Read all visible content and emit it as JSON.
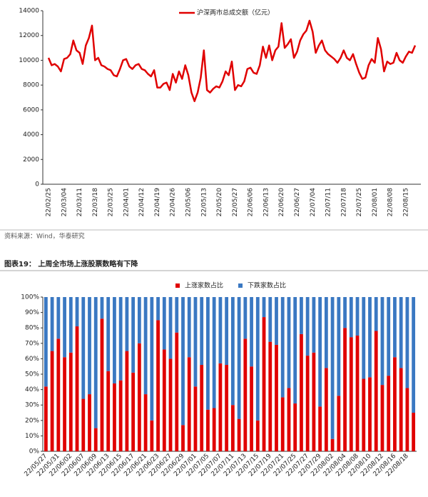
{
  "chart_data": [
    {
      "type": "line",
      "series": [
        {
          "name": "沪深两市总成交额（亿元）",
          "color": "#e00000",
          "values": [
            10200,
            9600,
            9700,
            9500,
            9100,
            10100,
            10200,
            10500,
            11600,
            10800,
            10600,
            9700,
            11200,
            11800,
            12800,
            10000,
            10200,
            9600,
            9500,
            9300,
            9200,
            8800,
            8700,
            9300,
            10000,
            10100,
            9500,
            9300,
            9600,
            9700,
            9300,
            9200,
            8900,
            8700,
            9200,
            7800,
            7800,
            8100,
            8200,
            7600,
            8900,
            8200,
            9100,
            8500,
            9600,
            8800,
            7400,
            6700,
            7400,
            8600,
            10800,
            7600,
            7400,
            7700,
            7900,
            7800,
            8300,
            9100,
            8800,
            9900,
            7600,
            8000,
            7900,
            8300,
            9300,
            9400,
            9000,
            8900,
            9600,
            11100,
            10200,
            11200,
            10000,
            10800,
            11100,
            13000,
            11000,
            11300,
            11700,
            10200,
            10700,
            11600,
            12100,
            12400,
            13200,
            12300,
            10600,
            11200,
            11600,
            10800,
            10500,
            10300,
            10100,
            9800,
            10200,
            10800,
            10200,
            10000,
            10500,
            9700,
            9000,
            8500,
            8600,
            9600,
            10100,
            9800,
            11800,
            10900,
            9100,
            9900,
            9700,
            9800,
            10600,
            10000,
            9800,
            10300,
            10700,
            10600,
            11200
          ]
        }
      ],
      "categories": [
        "22/02/25",
        null,
        null,
        null,
        null,
        "22/03/04",
        null,
        null,
        null,
        null,
        "22/03/11",
        null,
        null,
        null,
        null,
        "22/03/18",
        null,
        null,
        null,
        null,
        "22/03/25",
        null,
        null,
        null,
        null,
        "22/04/01",
        null,
        null,
        null,
        null,
        "22/04/12",
        null,
        null,
        null,
        null,
        "22/04/19",
        null,
        null,
        null,
        null,
        "22/04/26",
        null,
        null,
        null,
        null,
        "22/05/06",
        null,
        null,
        null,
        null,
        "22/05/13",
        null,
        null,
        null,
        null,
        "22/05/20",
        null,
        null,
        null,
        null,
        "22/05/27",
        null,
        null,
        null,
        null,
        "22/06/06",
        null,
        null,
        null,
        null,
        "22/06/13",
        null,
        null,
        null,
        null,
        "22/06/20",
        null,
        null,
        null,
        null,
        "22/06/27",
        null,
        null,
        null,
        null,
        "22/07/04",
        null,
        null,
        null,
        null,
        "22/07/11",
        null,
        null,
        null,
        null,
        "22/07/18",
        null,
        null,
        null,
        null,
        "22/07/25",
        null,
        null,
        null,
        null,
        "22/08/01",
        null,
        null,
        null,
        null,
        "22/08/08",
        null,
        null,
        null,
        null,
        "22/08/15",
        null,
        null,
        null
      ],
      "ylim": [
        0,
        14000
      ],
      "yticks": [
        0,
        2000,
        4000,
        6000,
        8000,
        10000,
        12000,
        14000
      ],
      "legend": "top"
    },
    {
      "type": "stacked_bar",
      "series": [
        {
          "name": "上涨家数占比",
          "color": "#e00000",
          "values": [
            42,
            65,
            73,
            61,
            64,
            81,
            34,
            37,
            15,
            86,
            52,
            44,
            46,
            65,
            51,
            70,
            37,
            20,
            85,
            66,
            60,
            77,
            17,
            61,
            42,
            56,
            27,
            28,
            57,
            56,
            30,
            21,
            73,
            55,
            20,
            87,
            71,
            69,
            35,
            41,
            31,
            76,
            62,
            64,
            29,
            54,
            8,
            36,
            80,
            74,
            75,
            47,
            48,
            78,
            43,
            49,
            61,
            54,
            41,
            25
          ]
        },
        {
          "name": "下跌家数占比",
          "color": "#3a78c2",
          "values": [
            58,
            35,
            27,
            39,
            36,
            19,
            66,
            63,
            85,
            14,
            48,
            56,
            54,
            35,
            49,
            30,
            63,
            80,
            15,
            34,
            40,
            23,
            83,
            39,
            58,
            44,
            73,
            72,
            43,
            44,
            70,
            79,
            27,
            45,
            80,
            13,
            29,
            31,
            65,
            59,
            69,
            24,
            38,
            36,
            71,
            46,
            92,
            64,
            20,
            26,
            25,
            53,
            52,
            22,
            57,
            51,
            39,
            46,
            59,
            75
          ]
        }
      ],
      "categories": [
        "22/05/27",
        null,
        "22/05/31",
        null,
        "22/06/02",
        null,
        "22/06/07",
        null,
        "22/06/09",
        null,
        "22/06/13",
        null,
        "22/06/15",
        null,
        "22/06/17",
        null,
        "22/06/21",
        null,
        "22/06/23",
        null,
        "22/06/27",
        null,
        "22/06/29",
        null,
        "22/07/01",
        null,
        "22/07/05",
        null,
        "22/07/07",
        null,
        "22/07/11",
        null,
        "22/07/13",
        null,
        "22/07/15",
        null,
        "22/07/19",
        null,
        "22/07/21",
        null,
        "22/07/25",
        null,
        "22/07/27",
        null,
        "22/07/29",
        null,
        "22/08/02",
        null,
        "22/08/04",
        null,
        "22/08/08",
        null,
        "22/08/10",
        null,
        "22/08/12",
        null,
        "22/08/16",
        null,
        "22/08/18",
        null
      ],
      "ylim": [
        0,
        100
      ],
      "yticks": [
        {
          "value": 0,
          "label": "0%"
        },
        {
          "value": 10,
          "label": "10%"
        },
        {
          "value": 20,
          "label": "20%"
        },
        {
          "value": 30,
          "label": "30%"
        },
        {
          "value": 40,
          "label": "40%"
        },
        {
          "value": 50,
          "label": "50%"
        },
        {
          "value": 60,
          "label": "60%"
        },
        {
          "value": 70,
          "label": "70%"
        },
        {
          "value": 80,
          "label": "80%"
        },
        {
          "value": 90,
          "label": "90%"
        },
        {
          "value": 100,
          "label": "100%"
        }
      ],
      "legend": "top"
    }
  ],
  "source": "资料来源：Wind，华泰研究",
  "figure_title": "图表19： 上周全市场上涨股票数略有下降"
}
